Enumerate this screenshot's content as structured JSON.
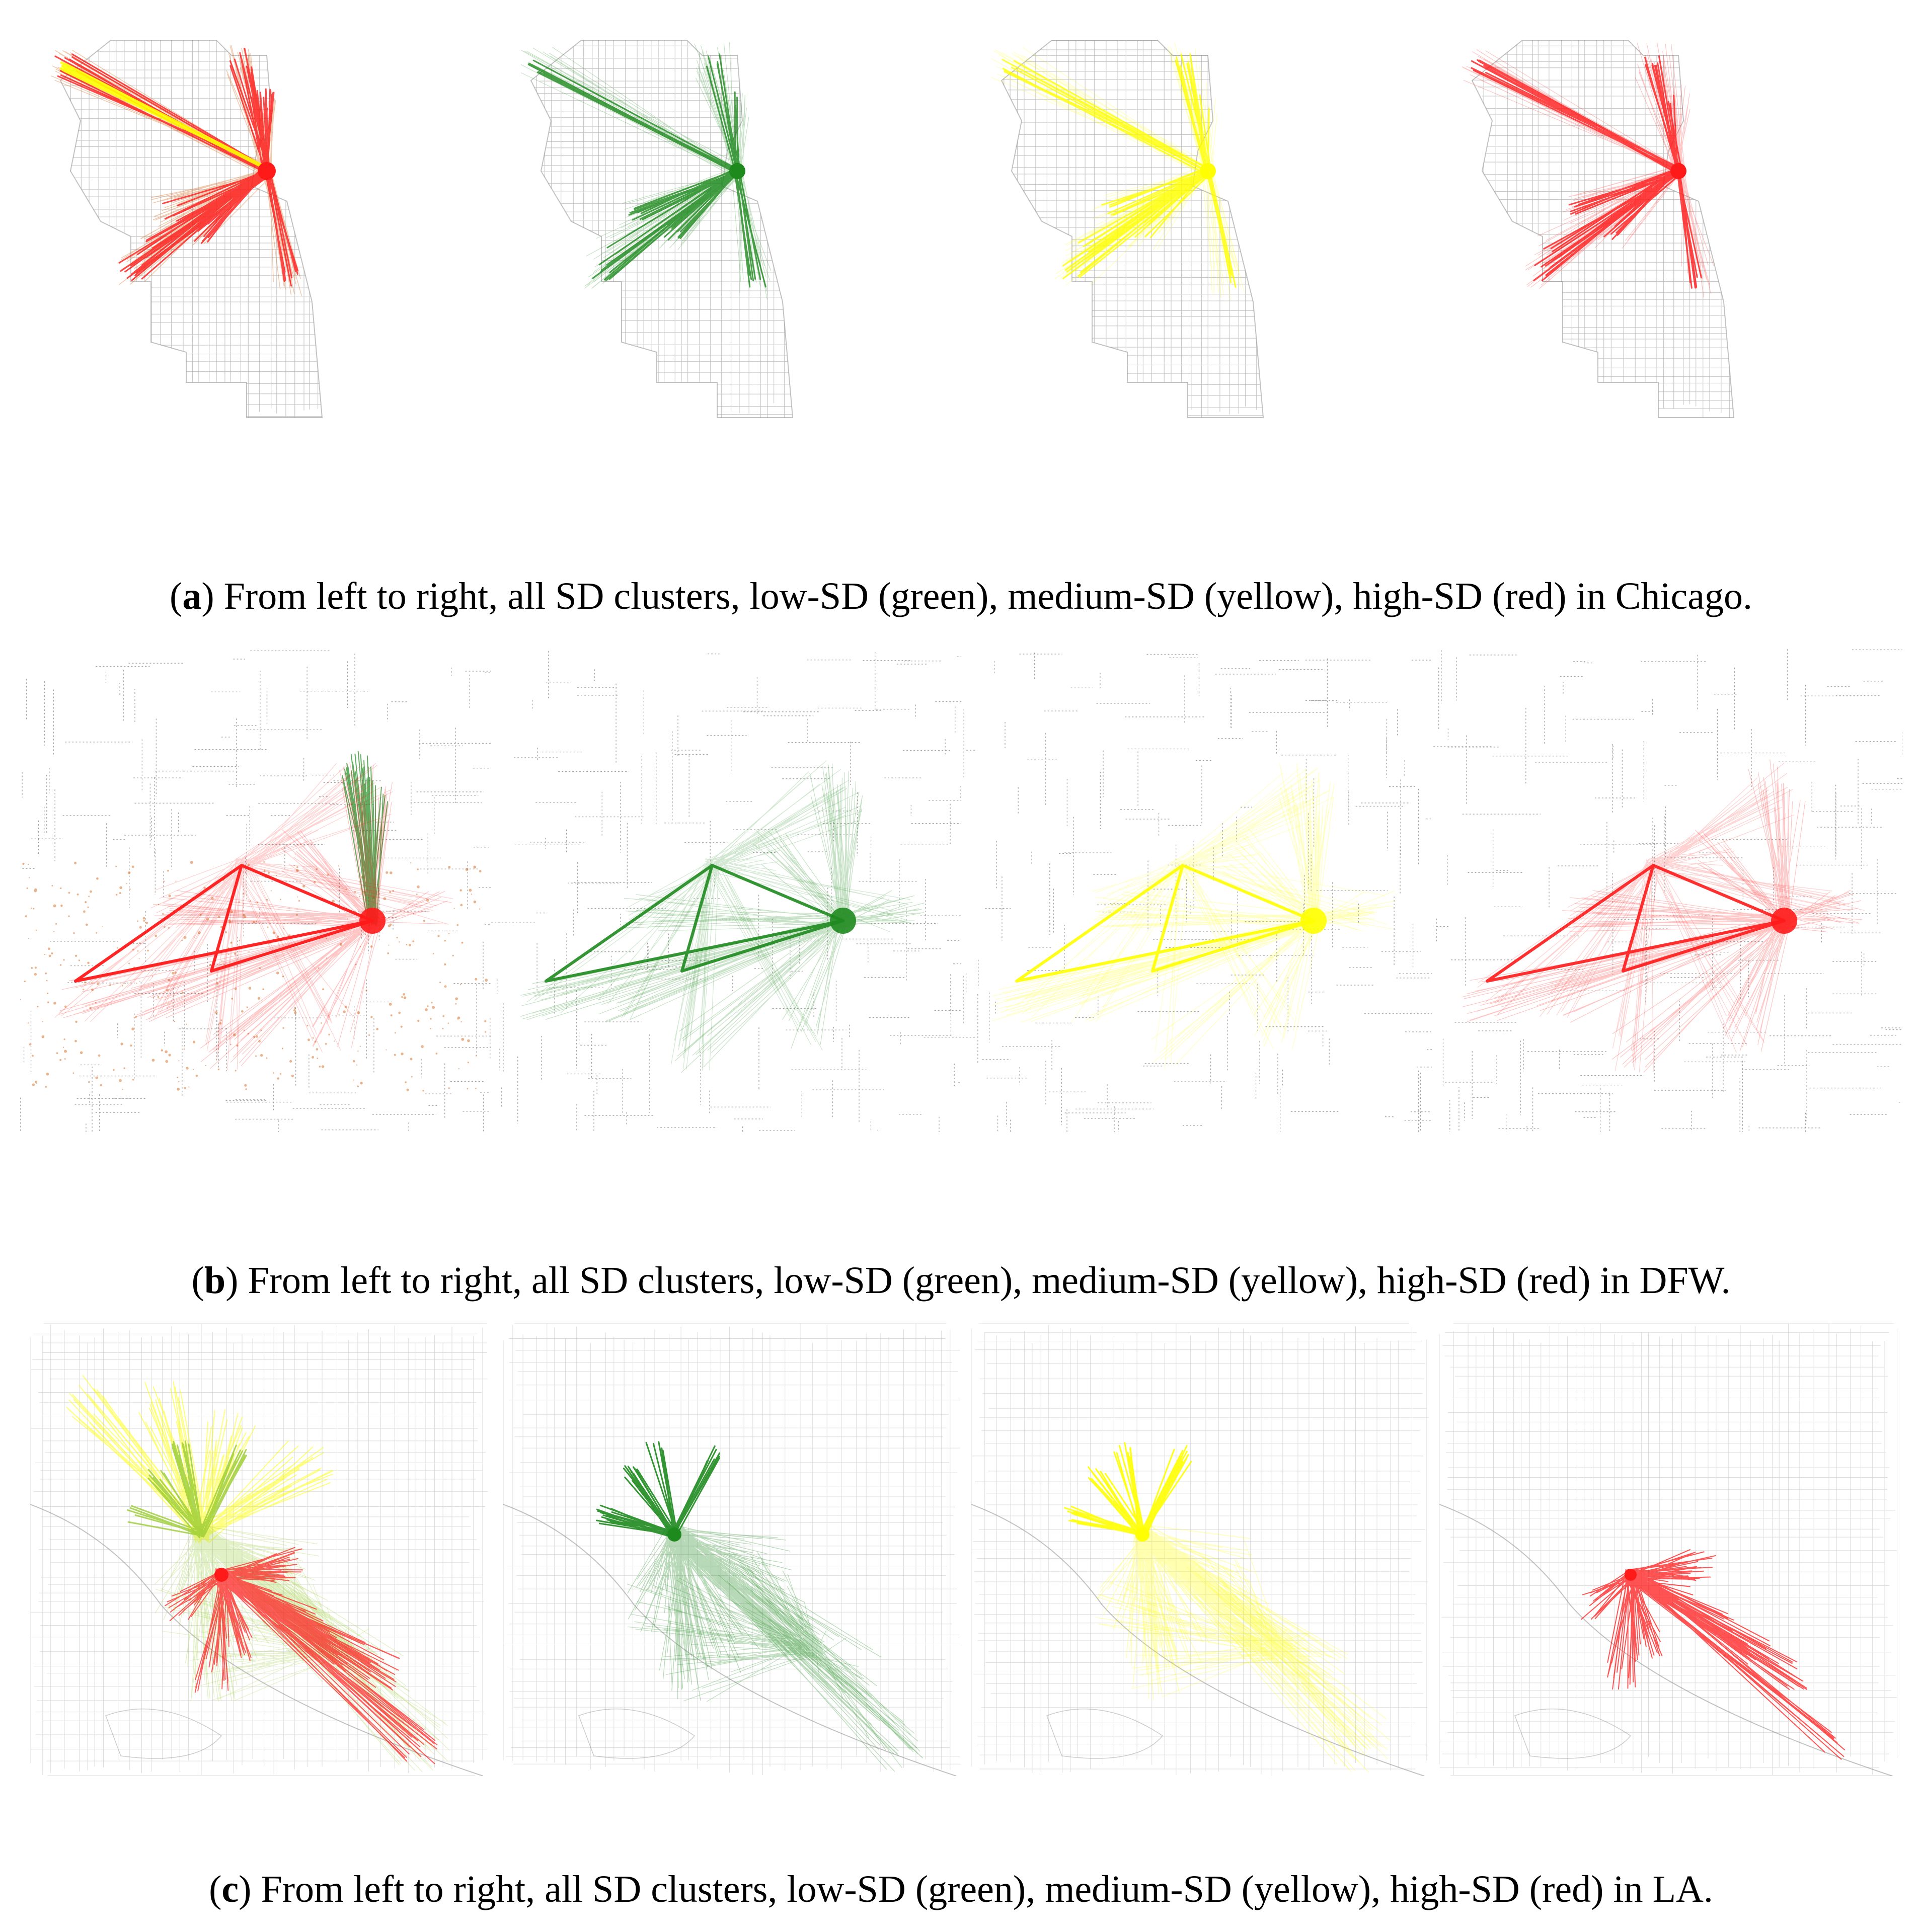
{
  "colors": {
    "low_sd": "#1e8a1e",
    "medium_sd": "#ffff00",
    "high_sd": "#ff1a1a",
    "all_orange": "#d2691e",
    "road_network": "#9a9a9a"
  },
  "figures": [
    {
      "id": "a",
      "letter": "a",
      "caption": "From left to right, all SD clusters, low-SD (green), medium-SD (yellow), high-SD (red) in Chicago.",
      "city": "Chicago",
      "panels": [
        "all",
        "low",
        "medium",
        "high"
      ]
    },
    {
      "id": "b",
      "letter": "b",
      "caption": "From left to right, all SD clusters, low-SD (green), medium-SD (yellow), high-SD (red) in DFW.",
      "city": "DFW",
      "panels": [
        "all",
        "low",
        "medium",
        "high"
      ]
    },
    {
      "id": "c",
      "letter": "c",
      "caption": "From left to right, all SD clusters, low-SD (green), medium-SD (yellow), high-SD (red) in LA.",
      "city": "LA",
      "panels": [
        "all",
        "low",
        "medium",
        "high"
      ]
    }
  ]
}
